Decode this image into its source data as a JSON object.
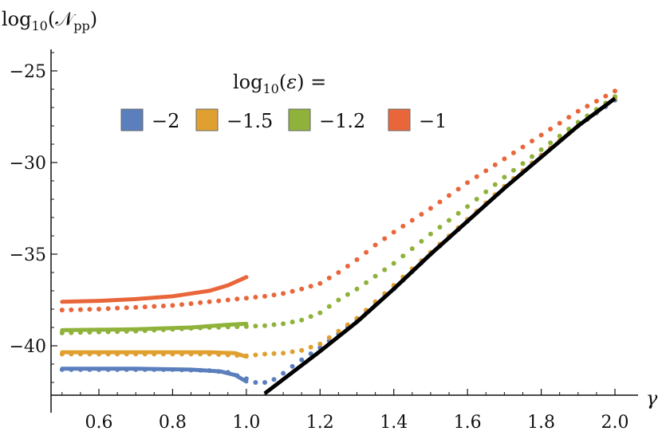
{
  "chart_data": {
    "type": "scatter",
    "title": "",
    "xlabel": "γ",
    "ylabel": "log₁₀(𝒩ₚₚ)",
    "xlim": [
      0.5,
      2.05
    ],
    "ylim": [
      -43.2,
      -24.0
    ],
    "x_ticks": [
      0.6,
      0.8,
      1.0,
      1.2,
      1.4,
      1.6,
      1.8,
      2.0
    ],
    "x_tick_labels": [
      "0.6",
      "0.8",
      "1.0",
      "1.2",
      "1.4",
      "1.6",
      "1.8",
      "2.0"
    ],
    "y_ticks": [
      -40,
      -35,
      -30,
      -25
    ],
    "y_tick_labels": [
      "−40",
      "−35",
      "−30",
      "−25"
    ],
    "grid": false,
    "legend": {
      "title": "log₁₀(ε) =",
      "placement": "top-center",
      "entries": [
        "−2",
        "−1.5",
        "−1.2",
        "−1"
      ]
    },
    "series": [
      {
        "name": "−2",
        "color": "#5b7fbd",
        "dots": [
          [
            0.5,
            -41.3
          ],
          [
            0.6,
            -41.3
          ],
          [
            0.7,
            -41.3
          ],
          [
            0.8,
            -41.3
          ],
          [
            0.9,
            -41.35
          ],
          [
            0.95,
            -41.45
          ],
          [
            1.0,
            -41.8
          ],
          [
            1.02,
            -42.0
          ],
          [
            1.05,
            -42.0
          ],
          [
            1.08,
            -41.8
          ],
          [
            1.1,
            -41.5
          ],
          [
            1.14,
            -40.9
          ],
          [
            1.2,
            -40.1
          ],
          [
            1.3,
            -38.6
          ],
          [
            1.4,
            -36.9
          ],
          [
            1.5,
            -35.0
          ],
          [
            1.6,
            -33.2
          ],
          [
            1.7,
            -31.3
          ],
          [
            1.8,
            -29.6
          ],
          [
            1.9,
            -28.0
          ],
          [
            2.0,
            -26.6
          ]
        ],
        "curve": [
          [
            0.5,
            -41.25
          ],
          [
            0.7,
            -41.25
          ],
          [
            0.85,
            -41.3
          ],
          [
            0.93,
            -41.4
          ],
          [
            0.97,
            -41.6
          ],
          [
            1.0,
            -41.95
          ]
        ]
      },
      {
        "name": "−1.5",
        "color": "#e0a030",
        "dots": [
          [
            0.5,
            -40.45
          ],
          [
            0.6,
            -40.45
          ],
          [
            0.7,
            -40.45
          ],
          [
            0.8,
            -40.45
          ],
          [
            0.9,
            -40.45
          ],
          [
            0.95,
            -40.5
          ],
          [
            1.0,
            -40.55
          ],
          [
            1.05,
            -40.45
          ],
          [
            1.1,
            -40.4
          ],
          [
            1.15,
            -40.25
          ],
          [
            1.2,
            -39.9
          ],
          [
            1.25,
            -39.2
          ],
          [
            1.3,
            -38.5
          ],
          [
            1.4,
            -36.7
          ],
          [
            1.5,
            -34.9
          ],
          [
            1.6,
            -33.1
          ],
          [
            1.7,
            -31.3
          ],
          [
            1.8,
            -29.6
          ],
          [
            1.9,
            -28.0
          ],
          [
            2.0,
            -26.5
          ]
        ],
        "curve": [
          [
            0.5,
            -40.35
          ],
          [
            0.7,
            -40.35
          ],
          [
            0.9,
            -40.35
          ],
          [
            0.97,
            -40.4
          ],
          [
            1.0,
            -40.6
          ]
        ]
      },
      {
        "name": "−1.2",
        "color": "#8fb23a",
        "dots": [
          [
            0.5,
            -39.3
          ],
          [
            0.6,
            -39.25
          ],
          [
            0.7,
            -39.2
          ],
          [
            0.8,
            -39.1
          ],
          [
            0.9,
            -39.0
          ],
          [
            1.0,
            -38.95
          ],
          [
            1.05,
            -38.9
          ],
          [
            1.1,
            -38.8
          ],
          [
            1.15,
            -38.6
          ],
          [
            1.2,
            -38.2
          ],
          [
            1.25,
            -37.5
          ],
          [
            1.3,
            -36.9
          ],
          [
            1.4,
            -35.5
          ],
          [
            1.5,
            -33.9
          ],
          [
            1.6,
            -32.4
          ],
          [
            1.7,
            -30.8
          ],
          [
            1.8,
            -29.3
          ],
          [
            1.9,
            -27.8
          ],
          [
            2.0,
            -26.4
          ]
        ],
        "curve": [
          [
            0.5,
            -39.15
          ],
          [
            0.7,
            -39.1
          ],
          [
            0.85,
            -39.0
          ],
          [
            0.95,
            -38.85
          ],
          [
            1.0,
            -38.8
          ]
        ]
      },
      {
        "name": "−1",
        "color": "#e9663a",
        "dots": [
          [
            0.5,
            -38.05
          ],
          [
            0.6,
            -38.0
          ],
          [
            0.7,
            -37.9
          ],
          [
            0.8,
            -37.8
          ],
          [
            0.9,
            -37.6
          ],
          [
            1.0,
            -37.4
          ],
          [
            1.05,
            -37.3
          ],
          [
            1.1,
            -37.15
          ],
          [
            1.15,
            -36.9
          ],
          [
            1.2,
            -36.6
          ],
          [
            1.25,
            -36.0
          ],
          [
            1.3,
            -35.3
          ],
          [
            1.35,
            -34.5
          ],
          [
            1.4,
            -33.8
          ],
          [
            1.5,
            -32.5
          ],
          [
            1.6,
            -31.1
          ],
          [
            1.7,
            -29.8
          ],
          [
            1.8,
            -28.5
          ],
          [
            1.9,
            -27.2
          ],
          [
            2.0,
            -26.1
          ]
        ],
        "curve": [
          [
            0.5,
            -37.6
          ],
          [
            0.6,
            -37.55
          ],
          [
            0.7,
            -37.45
          ],
          [
            0.8,
            -37.3
          ],
          [
            0.9,
            -37.0
          ],
          [
            0.95,
            -36.7
          ],
          [
            1.0,
            -36.25
          ]
        ]
      }
    ],
    "reference_line": {
      "color": "#000000",
      "points": [
        [
          1.05,
          -42.6
        ],
        [
          1.2,
          -40.3
        ],
        [
          1.3,
          -38.7
        ],
        [
          1.4,
          -36.9
        ],
        [
          1.5,
          -35.0
        ],
        [
          1.6,
          -33.2
        ],
        [
          1.7,
          -31.4
        ],
        [
          1.8,
          -29.7
        ],
        [
          1.9,
          -28.0
        ],
        [
          2.0,
          -26.5
        ]
      ]
    }
  }
}
